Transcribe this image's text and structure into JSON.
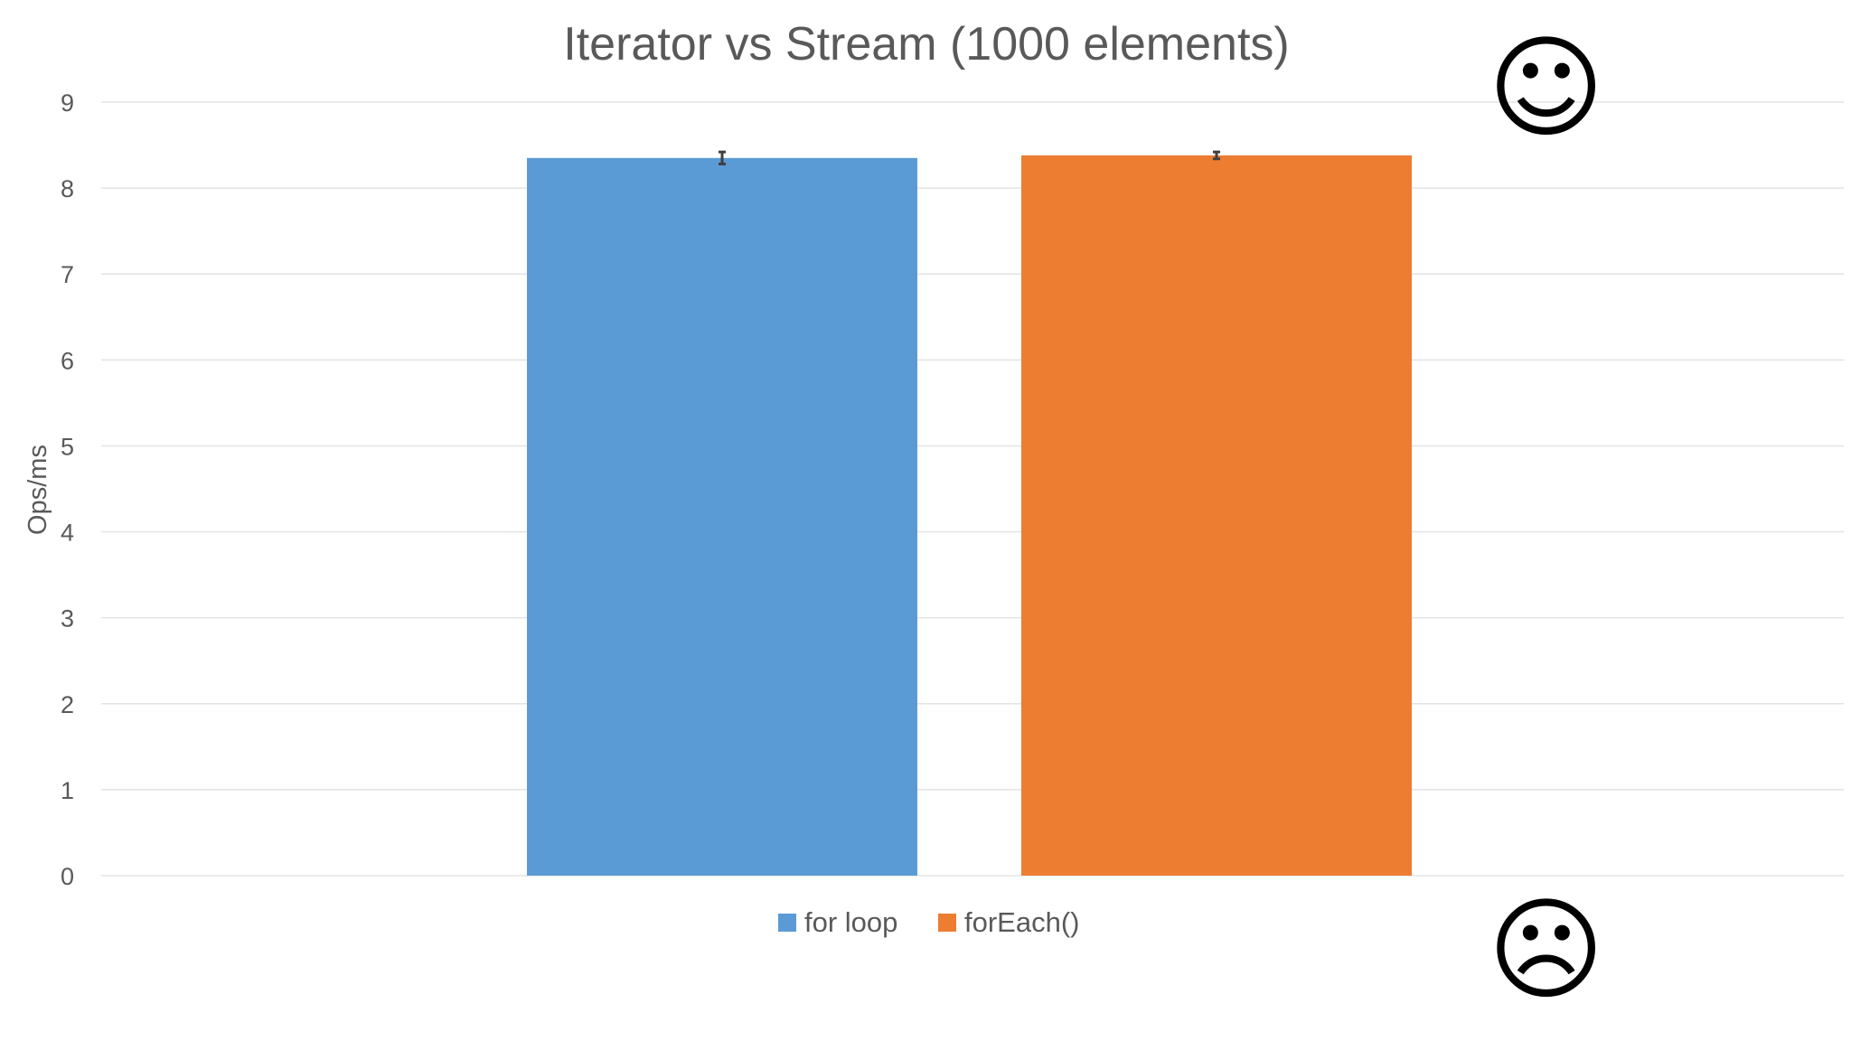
{
  "chart_data": {
    "type": "bar",
    "title": "Iterator vs Stream (1000 elements)",
    "xlabel": "",
    "ylabel": "Ops/ms",
    "ylim": [
      0,
      9
    ],
    "yticks": [
      "0",
      "1",
      "2",
      "3",
      "4",
      "5",
      "6",
      "7",
      "8",
      "9"
    ],
    "grid": true,
    "legend_position": "bottom",
    "series": [
      {
        "name": "for loop",
        "value": 8.35,
        "error": 0.07,
        "color": "#5b9bd5"
      },
      {
        "name": "forEach()",
        "value": 8.38,
        "error": 0.04,
        "color": "#ed7d31"
      }
    ]
  },
  "annotations": {
    "smile_icon": "smiling-face-icon",
    "frown_icon": "frowning-face-icon"
  },
  "colors": {
    "grid": "#e3e3e3",
    "text": "#595959",
    "error_bar": "#404040"
  }
}
